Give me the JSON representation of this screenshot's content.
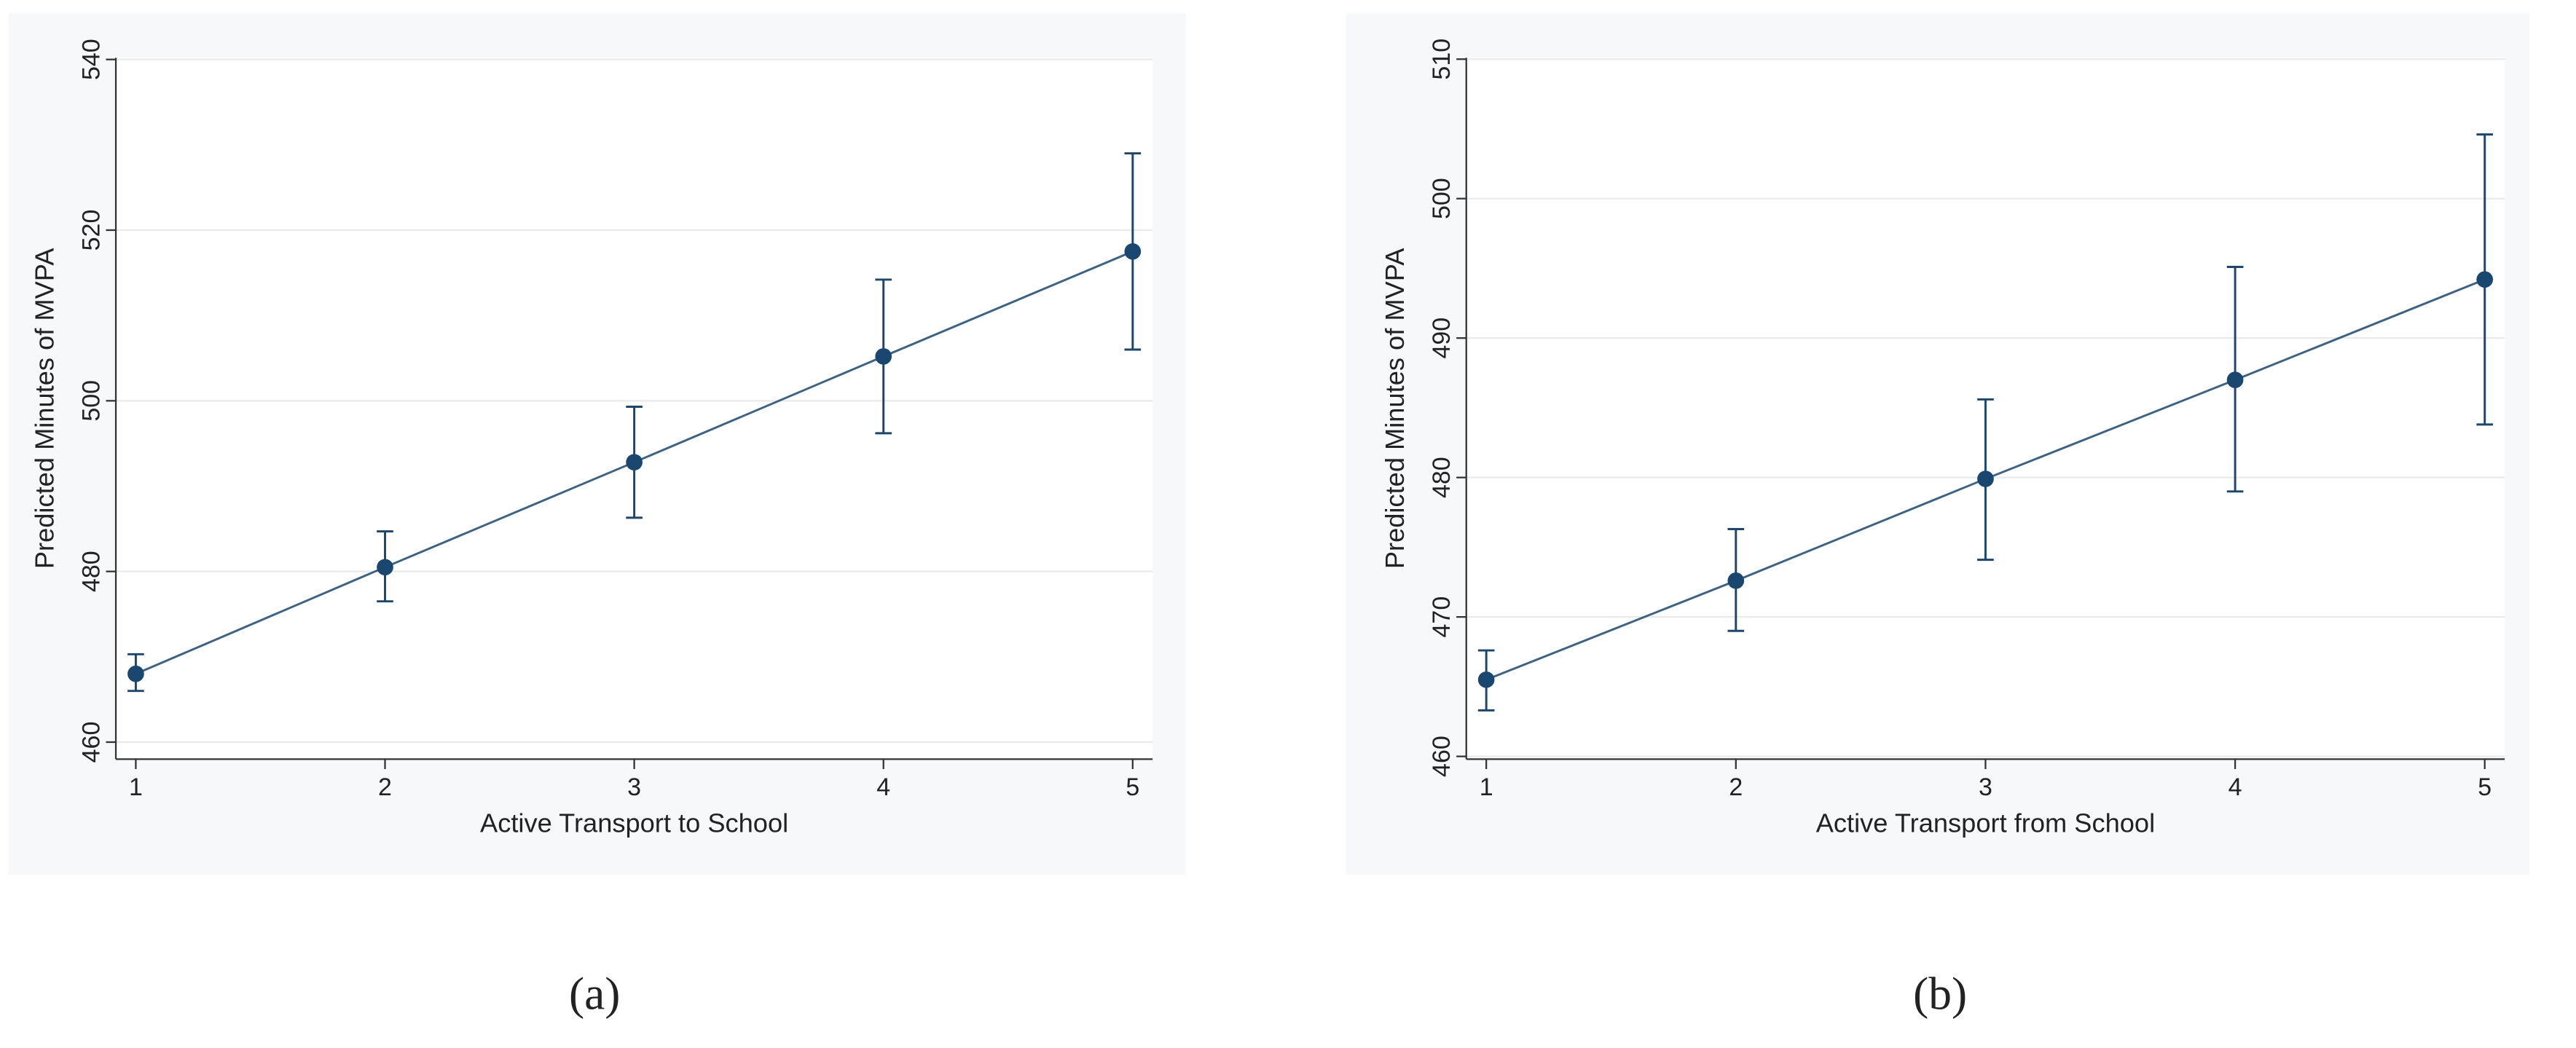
{
  "chart_data": [
    {
      "type": "line",
      "caption": "(a)",
      "xlabel": "Active Transport to School",
      "ylabel": "Predicted Minutes of MVPA",
      "x": [
        1,
        2,
        3,
        4,
        5
      ],
      "series": [
        {
          "color": "#1a476f",
          "values": [
            468,
            480.5,
            492.8,
            505.2,
            517.5
          ],
          "ci_low": [
            466,
            476.5,
            486.3,
            496.2,
            506
          ],
          "ci_high": [
            470.3,
            484.7,
            499.3,
            514.2,
            529
          ]
        }
      ],
      "xlim": [
        0.92,
        5.08
      ],
      "xticks": [
        1,
        2,
        3,
        4,
        5
      ],
      "ylim": [
        458,
        540.2
      ],
      "yticks": [
        460,
        480,
        500,
        520,
        540
      ],
      "grid": true
    },
    {
      "type": "line",
      "caption": "(b)",
      "xlabel": "Active Transport from School",
      "ylabel": "Predicted Minutes of MVPA",
      "x": [
        1,
        2,
        3,
        4,
        5
      ],
      "series": [
        {
          "color": "#1a476f",
          "values": [
            465.5,
            472.6,
            479.9,
            487,
            494.2
          ],
          "ci_low": [
            463.3,
            469,
            474.1,
            479,
            483.8
          ],
          "ci_high": [
            467.6,
            476.3,
            485.6,
            495.1,
            504.6
          ]
        }
      ],
      "xlim": [
        0.92,
        5.08
      ],
      "xticks": [
        1,
        2,
        3,
        4,
        5
      ],
      "ylim": [
        459.8,
        510.1
      ],
      "yticks": [
        460,
        470,
        480,
        490,
        500,
        510
      ],
      "grid": true
    }
  ]
}
